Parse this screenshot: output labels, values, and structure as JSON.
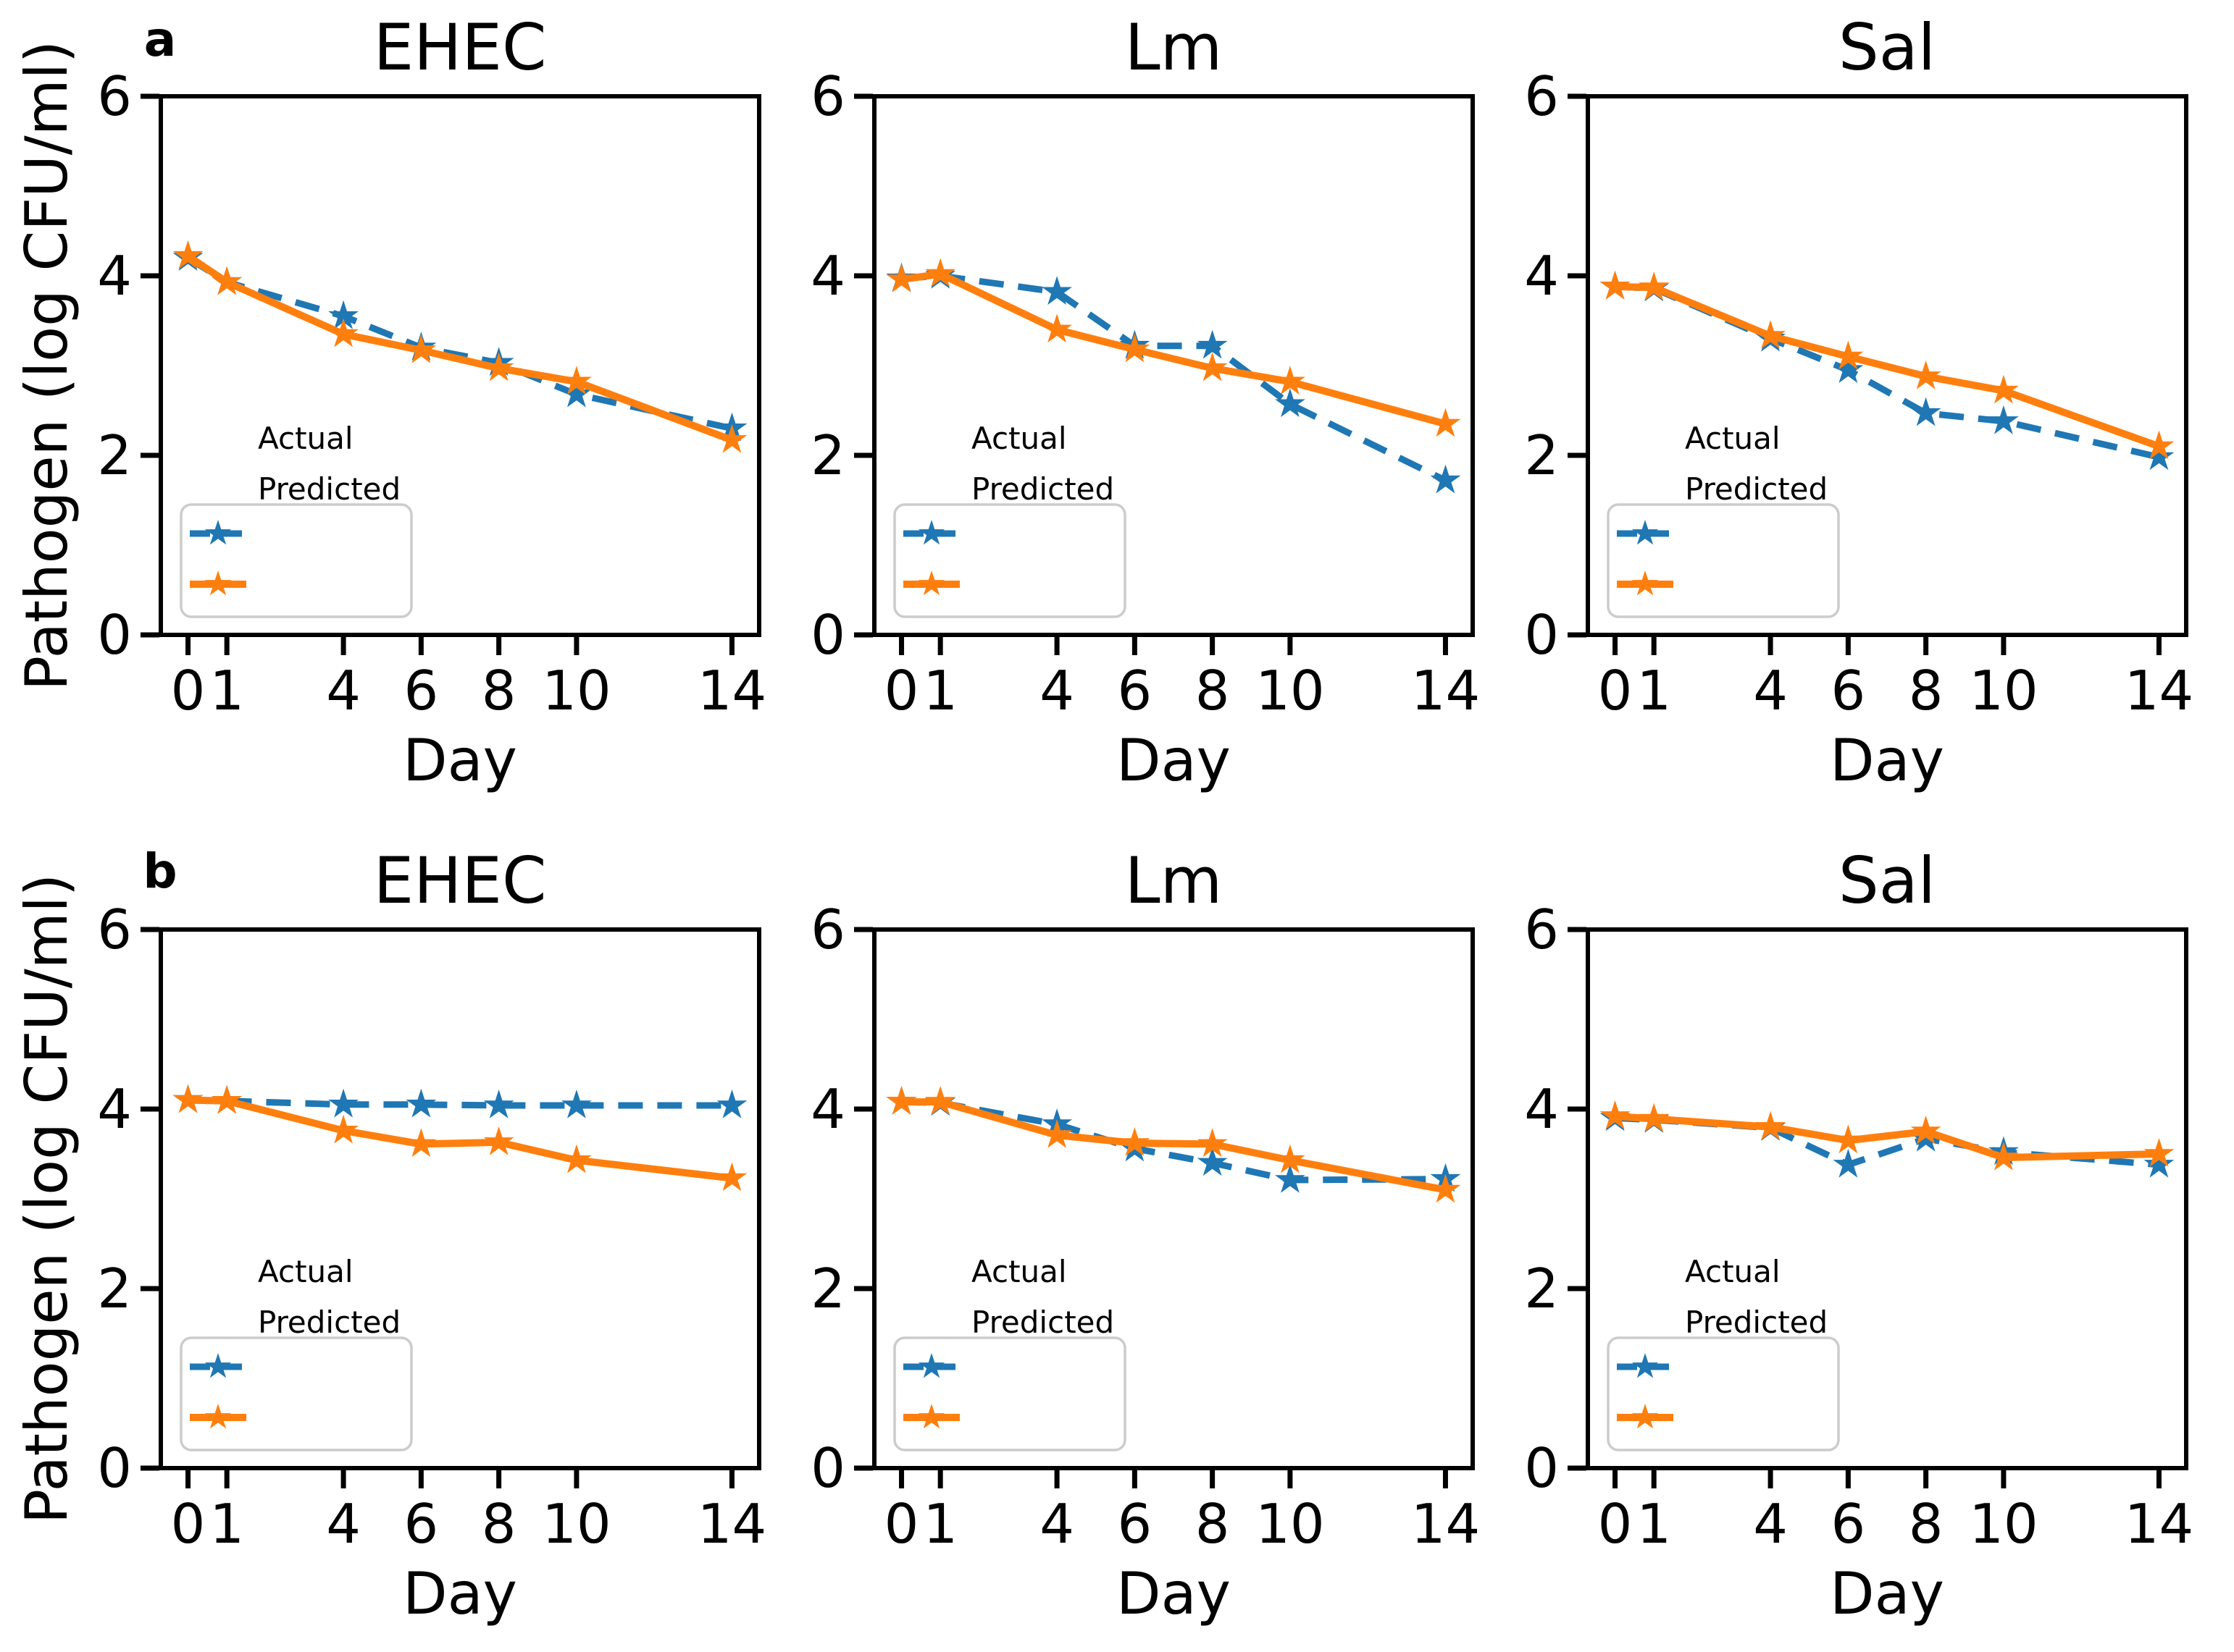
{
  "figure": {
    "ylabel": "Pathogen (log CFU/ml)",
    "xlabel": "Day",
    "colors": {
      "actual": "#1f77b4",
      "predicted": "#ff7f0e",
      "axis": "#000000",
      "legend_border": "#cccccc"
    },
    "legend": {
      "labels": [
        "Actual",
        "Predicted"
      ],
      "position": "lower left"
    }
  },
  "chart_data": [
    {
      "type": "line",
      "panel_label": "a",
      "title": "EHEC",
      "xlabel": "Day",
      "ylabel": "Pathogen (log CFU/ml)",
      "x": [
        0,
        1,
        4,
        6,
        8,
        10,
        14
      ],
      "xticks": [
        0,
        1,
        4,
        6,
        8,
        10,
        14
      ],
      "yticks": [
        0,
        2,
        4,
        6
      ],
      "xlim": [
        -0.7,
        14.7
      ],
      "ylim": [
        0,
        6
      ],
      "legend_position": "lower left",
      "series": [
        {
          "name": "Actual",
          "color": "#1f77b4",
          "line_style": "dashed",
          "marker": "star",
          "values": [
            4.2,
            3.93,
            3.55,
            3.2,
            3.03,
            2.68,
            2.3
          ]
        },
        {
          "name": "Predicted",
          "color": "#ff7f0e",
          "line_style": "solid",
          "marker": "star",
          "values": [
            4.22,
            3.93,
            3.35,
            3.17,
            2.97,
            2.82,
            2.17
          ]
        }
      ]
    },
    {
      "type": "line",
      "panel_label": "",
      "title": "Lm",
      "xlabel": "Day",
      "ylabel": "Pathogen (log CFU/ml)",
      "x": [
        0,
        1,
        4,
        6,
        8,
        10,
        14
      ],
      "xticks": [
        0,
        1,
        4,
        6,
        8,
        10,
        14
      ],
      "yticks": [
        0,
        2,
        4,
        6
      ],
      "xlim": [
        -0.7,
        14.7
      ],
      "ylim": [
        0,
        6
      ],
      "legend_position": "lower left",
      "series": [
        {
          "name": "Actual",
          "color": "#1f77b4",
          "line_style": "dashed",
          "marker": "star",
          "values": [
            3.97,
            4.0,
            3.82,
            3.22,
            3.22,
            2.57,
            1.72
          ]
        },
        {
          "name": "Predicted",
          "color": "#ff7f0e",
          "line_style": "solid",
          "marker": "star",
          "values": [
            3.96,
            4.02,
            3.4,
            3.18,
            2.97,
            2.82,
            2.35
          ]
        }
      ]
    },
    {
      "type": "line",
      "panel_label": "",
      "title": "Sal",
      "xlabel": "Day",
      "ylabel": "Pathogen (log CFU/ml)",
      "x": [
        0,
        1,
        4,
        6,
        8,
        10,
        14
      ],
      "xticks": [
        0,
        1,
        4,
        6,
        8,
        10,
        14
      ],
      "yticks": [
        0,
        2,
        4,
        6
      ],
      "xlim": [
        -0.7,
        14.7
      ],
      "ylim": [
        0,
        6
      ],
      "legend_position": "lower left",
      "series": [
        {
          "name": "Actual",
          "color": "#1f77b4",
          "line_style": "dashed",
          "marker": "star",
          "values": [
            3.88,
            3.86,
            3.3,
            2.95,
            2.47,
            2.38,
            1.98
          ]
        },
        {
          "name": "Predicted",
          "color": "#ff7f0e",
          "line_style": "solid",
          "marker": "star",
          "values": [
            3.88,
            3.87,
            3.33,
            3.1,
            2.88,
            2.72,
            2.1
          ]
        }
      ]
    },
    {
      "type": "line",
      "panel_label": "b",
      "title": "EHEC",
      "xlabel": "Day",
      "ylabel": "Pathogen (log CFU/ml)",
      "x": [
        0,
        1,
        4,
        6,
        8,
        10,
        14
      ],
      "xticks": [
        0,
        1,
        4,
        6,
        8,
        10,
        14
      ],
      "yticks": [
        0,
        2,
        4,
        6
      ],
      "xlim": [
        -0.7,
        14.7
      ],
      "ylim": [
        0,
        6
      ],
      "legend_position": "lower left",
      "series": [
        {
          "name": "Actual",
          "color": "#1f77b4",
          "line_style": "dashed",
          "marker": "star",
          "values": [
            4.1,
            4.09,
            4.05,
            4.05,
            4.04,
            4.04,
            4.04
          ]
        },
        {
          "name": "Predicted",
          "color": "#ff7f0e",
          "line_style": "solid",
          "marker": "star",
          "values": [
            4.1,
            4.09,
            3.76,
            3.61,
            3.63,
            3.43,
            3.23
          ]
        }
      ]
    },
    {
      "type": "line",
      "panel_label": "",
      "title": "Lm",
      "xlabel": "Day",
      "ylabel": "Pathogen (log CFU/ml)",
      "x": [
        0,
        1,
        4,
        6,
        8,
        10,
        14
      ],
      "xticks": [
        0,
        1,
        4,
        6,
        8,
        10,
        14
      ],
      "yticks": [
        0,
        2,
        4,
        6
      ],
      "xlim": [
        -0.7,
        14.7
      ],
      "ylim": [
        0,
        6
      ],
      "legend_position": "lower left",
      "series": [
        {
          "name": "Actual",
          "color": "#1f77b4",
          "line_style": "dashed",
          "marker": "star",
          "values": [
            4.08,
            4.07,
            3.83,
            3.56,
            3.4,
            3.21,
            3.22
          ]
        },
        {
          "name": "Predicted",
          "color": "#ff7f0e",
          "line_style": "solid",
          "marker": "star",
          "values": [
            4.08,
            4.08,
            3.71,
            3.62,
            3.61,
            3.43,
            3.1
          ]
        }
      ]
    },
    {
      "type": "line",
      "panel_label": "",
      "title": "Sal",
      "xlabel": "Day",
      "ylabel": "Pathogen (log CFU/ml)",
      "x": [
        0,
        1,
        4,
        6,
        8,
        10,
        14
      ],
      "xticks": [
        0,
        1,
        4,
        6,
        8,
        10,
        14
      ],
      "yticks": [
        0,
        2,
        4,
        6
      ],
      "xlim": [
        -0.7,
        14.7
      ],
      "ylim": [
        0,
        6
      ],
      "legend_position": "lower left",
      "series": [
        {
          "name": "Actual",
          "color": "#1f77b4",
          "line_style": "dashed",
          "marker": "star",
          "values": [
            3.9,
            3.88,
            3.79,
            3.38,
            3.67,
            3.52,
            3.38
          ]
        },
        {
          "name": "Predicted",
          "color": "#ff7f0e",
          "line_style": "solid",
          "marker": "star",
          "values": [
            3.92,
            3.89,
            3.8,
            3.65,
            3.75,
            3.46,
            3.5
          ]
        }
      ]
    }
  ]
}
